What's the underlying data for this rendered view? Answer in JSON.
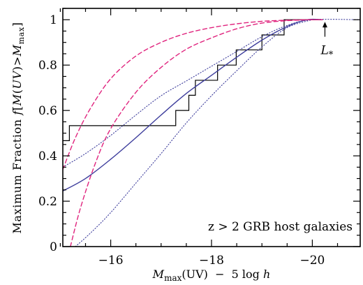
{
  "chart_data": {
    "type": "line",
    "xlabel": {
      "main": "M",
      "sub": "max",
      "rest": "(UV)  −  5 log ",
      "h": "h"
    },
    "ylabel": {
      "a": "Maximum Fraction ",
      "f": "f",
      "b": "[",
      "M": "M",
      "c": "(",
      "UV": "UV",
      "d": ")>",
      "M2": "M",
      "sub": "max",
      "e": "]"
    },
    "annotation": "z > 2 GRB host galaxies",
    "lstar": {
      "L": "L",
      "sub": "*",
      "x": -20.25,
      "y_tip": 1.0,
      "y_label": 0.87
    },
    "xlim": [
      -15.05,
      -20.95
    ],
    "ylim": [
      0,
      1.05
    ],
    "xticks": [
      -16,
      -18,
      -20
    ],
    "xtick_labels": [
      "−16",
      "−18",
      "−20"
    ],
    "xminor_step": 0.5,
    "yticks": [
      0,
      0.2,
      0.4,
      0.6,
      0.8,
      1
    ],
    "ytick_labels": [
      "0",
      "0.2",
      "0.4",
      "0.6",
      "0.8",
      "1"
    ],
    "yminor_step": 0.05,
    "colors": {
      "model": "#3d3d9c",
      "dashed": "#e0247e",
      "steps": "#000000",
      "axis": "#000000"
    },
    "series": [
      {
        "style": "step-black",
        "x": [
          -15.05,
          -15.18,
          -15.18,
          -17.29,
          -17.29,
          -17.55,
          -17.55,
          -17.68,
          -17.68,
          -18.12,
          -18.12,
          -18.49,
          -18.49,
          -19.0,
          -19.0,
          -19.44,
          -19.44,
          -20.2
        ],
        "y": [
          0.467,
          0.467,
          0.533,
          0.533,
          0.6,
          0.6,
          0.667,
          0.667,
          0.733,
          0.733,
          0.8,
          0.8,
          0.867,
          0.867,
          0.933,
          0.933,
          1.0,
          1.0
        ]
      },
      {
        "style": "solid-blue",
        "x": [
          -15.05,
          -15.5,
          -16.0,
          -16.5,
          -17.0,
          -17.5,
          -18.0,
          -18.5,
          -19.0,
          -19.5,
          -19.9,
          -20.2
        ],
        "y": [
          0.245,
          0.3,
          0.385,
          0.48,
          0.58,
          0.675,
          0.755,
          0.835,
          0.91,
          0.97,
          1.0,
          1.0
        ]
      },
      {
        "style": "dotted-blue",
        "x": [
          -15.05,
          -15.5,
          -16.0,
          -16.5,
          -17.0,
          -17.5,
          -18.0,
          -18.5,
          -19.0,
          -19.5,
          -20.0,
          -20.95
        ],
        "y": [
          0.35,
          0.41,
          0.49,
          0.58,
          0.665,
          0.73,
          0.795,
          0.86,
          0.925,
          0.975,
          1.0,
          1.0
        ]
      },
      {
        "style": "dotted-blue",
        "x": [
          -15.3,
          -15.6,
          -16.0,
          -16.5,
          -17.0,
          -17.5,
          -18.0,
          -18.5,
          -19.0,
          -19.5,
          -20.0
        ],
        "y": [
          0.0,
          0.06,
          0.15,
          0.28,
          0.41,
          0.545,
          0.665,
          0.775,
          0.88,
          0.965,
          1.0
        ]
      },
      {
        "style": "dashed-pink",
        "x": [
          -15.05,
          -15.3,
          -15.6,
          -16.0,
          -16.5,
          -17.0,
          -17.5,
          -18.0,
          -18.5,
          -19.0,
          -19.5,
          -20.0,
          -20.2
        ],
        "y": [
          0.34,
          0.48,
          0.61,
          0.74,
          0.84,
          0.9,
          0.94,
          0.965,
          0.982,
          0.993,
          0.998,
          1.0,
          1.0
        ]
      },
      {
        "style": "dashed-pink",
        "x": [
          -15.2,
          -15.4,
          -15.7,
          -16.0,
          -16.5,
          -17.0,
          -17.5,
          -18.0,
          -18.5,
          -19.0,
          -19.5,
          -20.0,
          -20.2
        ],
        "y": [
          0.0,
          0.17,
          0.37,
          0.52,
          0.68,
          0.79,
          0.87,
          0.92,
          0.96,
          0.985,
          0.996,
          1.0,
          1.0
        ]
      }
    ]
  }
}
